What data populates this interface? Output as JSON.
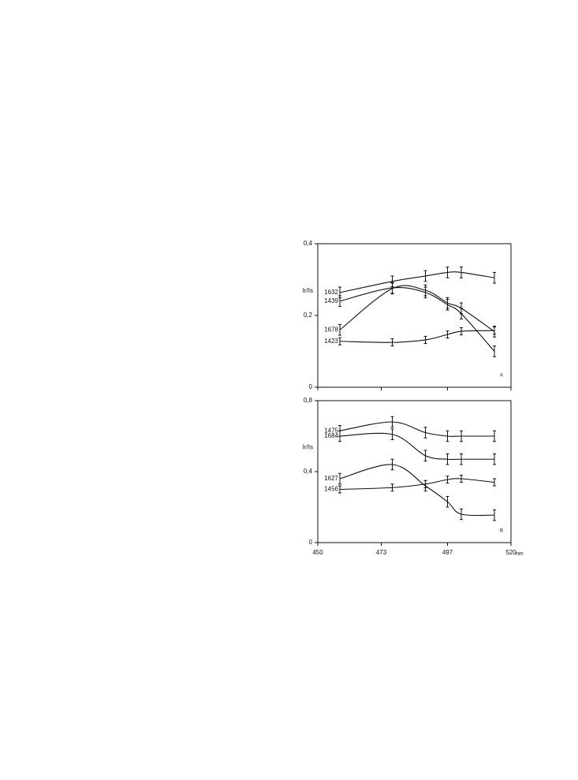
{
  "chart_data": [
    {
      "type": "line",
      "panel_label": "A",
      "ylabel": "Ir/Is",
      "x": [
        458,
        477,
        489,
        497,
        502,
        514
      ],
      "xlim": [
        450,
        520
      ],
      "ylim": [
        0,
        0.4
      ],
      "yticks": [
        0,
        {
          "value": 0.2,
          "label": "0,2"
        },
        {
          "value": 0.4,
          "label": "0,4"
        }
      ],
      "series": [
        {
          "name": "1632",
          "color": "#111111",
          "values": [
            0.264,
            0.295,
            0.31,
            0.32,
            0.32,
            0.305
          ],
          "errors": [
            0.015,
            0.015,
            0.015,
            0.015,
            0.015,
            0.015
          ]
        },
        {
          "name": "1439",
          "color": "#111111",
          "values": [
            0.24,
            0.277,
            0.264,
            0.23,
            0.205,
            0.1
          ],
          "errors": [
            0.015,
            0.015,
            0.015,
            0.015,
            0.015,
            0.015
          ]
        },
        {
          "name": "1678",
          "color": "#111111",
          "values": [
            0.16,
            0.275,
            0.27,
            0.235,
            0.22,
            0.155
          ],
          "errors": [
            0.015,
            0.015,
            0.015,
            0.015,
            0.015,
            0.015
          ]
        },
        {
          "name": "1423",
          "color": "#111111",
          "values": [
            0.128,
            0.125,
            0.132,
            0.147,
            0.156,
            0.158
          ],
          "errors": [
            0.01,
            0.01,
            0.01,
            0.01,
            0.01,
            0.01
          ]
        }
      ]
    },
    {
      "type": "line",
      "panel_label": "B",
      "ylabel": "Ir/Is",
      "xlabel": "nm",
      "x": [
        458,
        477,
        489,
        497,
        502,
        514
      ],
      "xlim": [
        450,
        520
      ],
      "xticks": [
        450,
        473,
        497,
        520
      ],
      "ylim": [
        0,
        0.8
      ],
      "yticks": [
        0,
        {
          "value": 0.4,
          "label": "0,4"
        },
        {
          "value": 0.8,
          "label": "0,8"
        }
      ],
      "series": [
        {
          "name": "1475",
          "color": "#111111",
          "values": [
            0.63,
            0.68,
            0.62,
            0.6,
            0.6,
            0.6
          ],
          "errors": [
            0.03,
            0.03,
            0.03,
            0.03,
            0.03,
            0.03
          ]
        },
        {
          "name": "1684",
          "color": "#111111",
          "values": [
            0.6,
            0.61,
            0.49,
            0.47,
            0.47,
            0.47
          ],
          "errors": [
            0.03,
            0.03,
            0.03,
            0.03,
            0.03,
            0.03
          ]
        },
        {
          "name": "1627",
          "color": "#111111",
          "values": [
            0.36,
            0.44,
            0.32,
            0.23,
            0.16,
            0.155
          ],
          "errors": [
            0.03,
            0.03,
            0.03,
            0.03,
            0.03,
            0.03
          ]
        },
        {
          "name": "1456",
          "color": "#111111",
          "values": [
            0.3,
            0.31,
            0.33,
            0.355,
            0.36,
            0.34
          ],
          "errors": [
            0.02,
            0.02,
            0.02,
            0.02,
            0.02,
            0.02
          ]
        }
      ]
    }
  ]
}
